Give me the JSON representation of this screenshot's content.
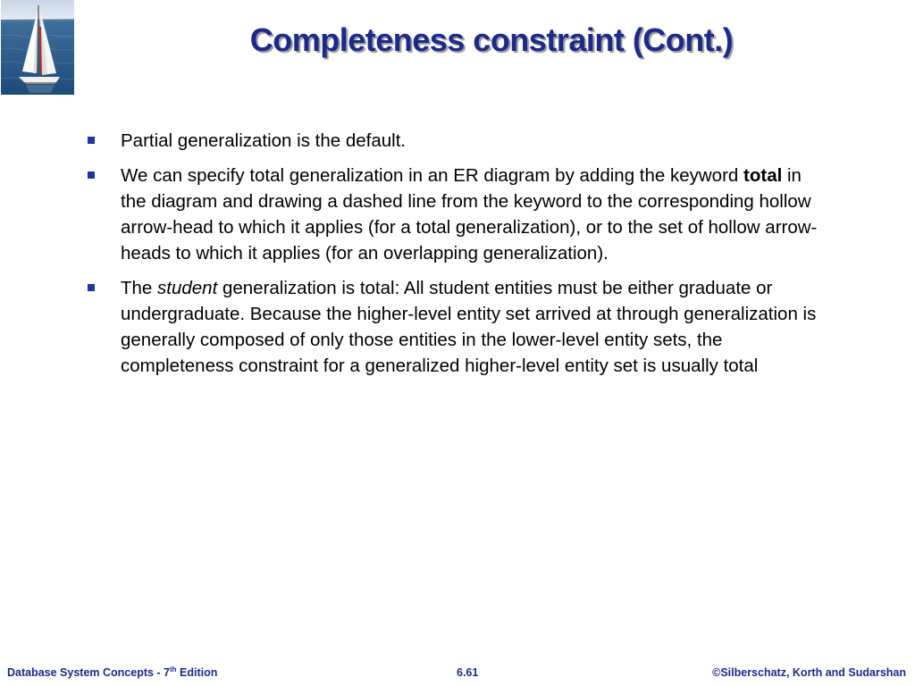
{
  "slide": {
    "title": "Completeness constraint (Cont.)",
    "logo_icon": "sailboat-image",
    "bullets": [
      {
        "parts": [
          {
            "text": "Partial generalization is the default.",
            "style": "normal"
          }
        ]
      },
      {
        "parts": [
          {
            "text": "We can specify total generalization in an ER diagram by adding the keyword ",
            "style": "normal"
          },
          {
            "text": "total",
            "style": "bold"
          },
          {
            "text": " in the diagram and drawing a dashed line from the keyword to the corresponding hollow arrow-head to which it applies (for a total generalization), or to the set of hollow arrow-heads to which it applies (for an overlapping generalization).",
            "style": "normal"
          }
        ]
      },
      {
        "parts": [
          {
            "text": "The ",
            "style": "normal"
          },
          {
            "text": "student",
            "style": "italic"
          },
          {
            "text": " generalization is total: All student entities must be either graduate or undergraduate. Because the higher-level entity set arrived at through generalization is generally composed of only those entities in the lower-level entity sets, the completeness constraint for a generalized higher-level entity set is usually total",
            "style": "normal"
          }
        ]
      }
    ]
  },
  "footer": {
    "book_title": "Database System Concepts - 7",
    "edition_superscript": "th",
    "edition_word": " Edition",
    "slide_number": "6.61",
    "copyright": "©Silberschatz, Korth and Sudarshan"
  },
  "colors": {
    "title": "#1c2a8a",
    "bullet": "#1f35a0",
    "footer": "#1c2a8a"
  }
}
